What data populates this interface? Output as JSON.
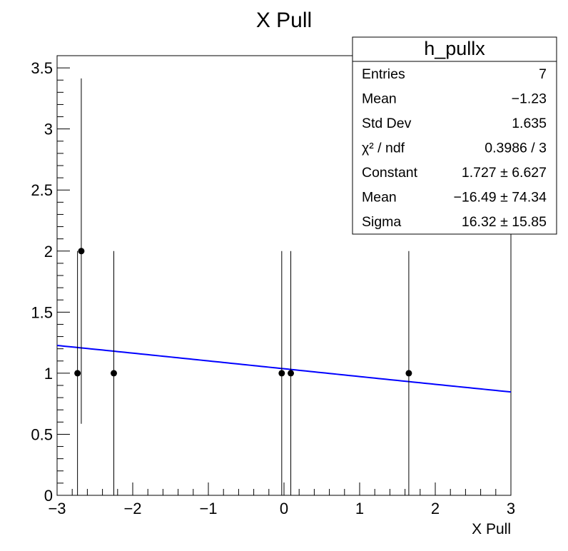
{
  "chart_data": {
    "type": "scatter",
    "title": "X Pull",
    "xlabel": "X Pull",
    "ylabel": "",
    "xlim": [
      -3,
      3
    ],
    "ylim": [
      0,
      3.6
    ],
    "xticks": [
      "−3",
      "−2",
      "−1",
      "0",
      "1",
      "2",
      "3"
    ],
    "xtick_values": [
      -3,
      -2,
      -1,
      0,
      1,
      2,
      3
    ],
    "yticks": [
      "0",
      "0.5",
      "1",
      "1.5",
      "2",
      "2.5",
      "3",
      "3.5"
    ],
    "ytick_values": [
      0,
      0.5,
      1,
      1.5,
      2,
      2.5,
      3,
      3.5
    ],
    "points": [
      {
        "x": -2.73,
        "y": 1,
        "err": 1
      },
      {
        "x": -2.68,
        "y": 2,
        "err": 1.414
      },
      {
        "x": -2.25,
        "y": 1,
        "err": 1
      },
      {
        "x": -0.03,
        "y": 1,
        "err": 1
      },
      {
        "x": 0.09,
        "y": 1,
        "err": 1
      },
      {
        "x": 1.65,
        "y": 1,
        "err": 1
      }
    ],
    "fit": {
      "function": "gaus",
      "constant": 1.727,
      "mean": -16.49,
      "sigma": 16.32,
      "color": "#0000ff"
    },
    "grid": false,
    "marker_color": "#000000",
    "stats_box": {
      "name": "h_pullx",
      "placement": "top-right",
      "rows": [
        {
          "label": "Entries",
          "value": "7"
        },
        {
          "label": "Mean",
          "value": "−1.23"
        },
        {
          "label": "Std Dev",
          "value": "1.635"
        },
        {
          "label": "χ² / ndf",
          "value": "0.3986 / 3"
        },
        {
          "label": "Constant",
          "value": "1.727 ± 6.627"
        },
        {
          "label": "Mean",
          "value": "−16.49 ± 74.34"
        },
        {
          "label": "Sigma",
          "value": "16.32 ± 15.85"
        }
      ]
    }
  }
}
